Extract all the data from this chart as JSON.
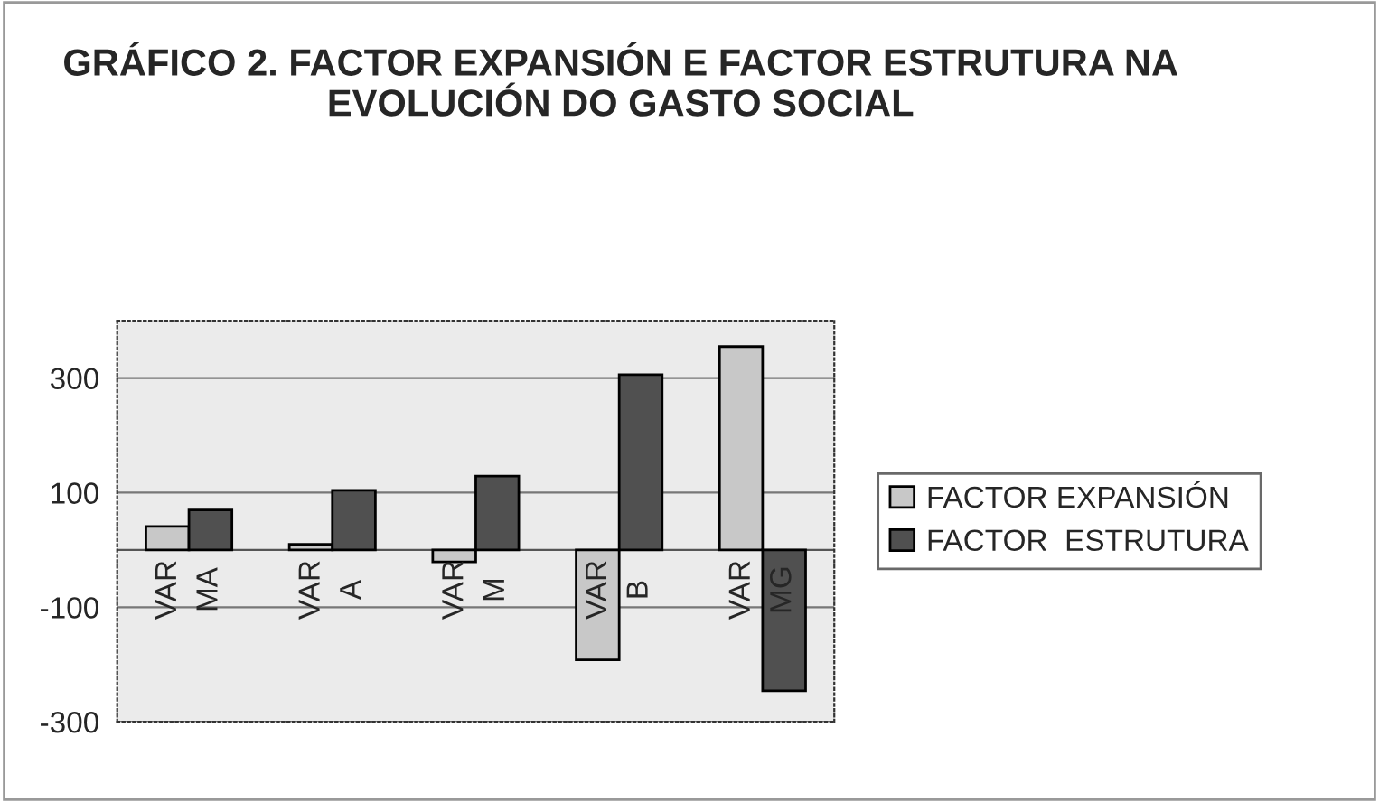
{
  "chart_data": {
    "type": "bar",
    "title": "GRÁFICO 2. FACTOR EXPANSIÓN E FACTOR ESTRUTURA NA EVOLUCIÓN DO GASTO SOCIAL",
    "categories": [
      "VAR\nMA",
      "VAR\nA",
      "VAR\nM",
      "VAR\nB",
      "VAR\nMG"
    ],
    "series": [
      {
        "name": "FACTOR EXPANSIÓN",
        "color": "#c8c8c8",
        "values": [
          41,
          10,
          -21,
          -192,
          355
        ]
      },
      {
        "name": "FACTOR  ESTRUTURA",
        "color": "#505050",
        "values": [
          70,
          104,
          129,
          306,
          -246
        ]
      }
    ],
    "ylim": [
      -300,
      400
    ],
    "yticks": [
      -300,
      -100,
      100,
      300
    ],
    "grid": "y",
    "legend": "right"
  }
}
